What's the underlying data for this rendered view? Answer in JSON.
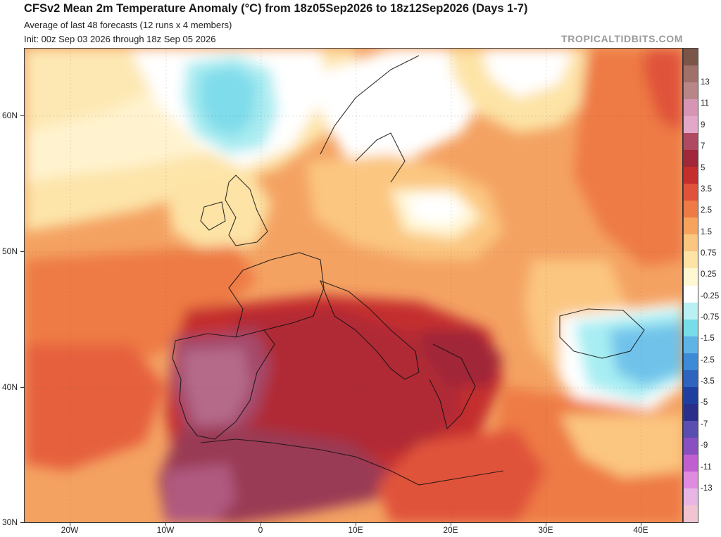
{
  "header": {
    "title": "CFSv2 Mean 2m Temperature Anomaly (°C) from 18z05Sep2026 to 18z12Sep2026 (Days 1-7)",
    "subtitle_1": "Average of last 48 forecasts (12 runs x 4 members)",
    "subtitle_2": "Init: 00z Sep 03 2026 through 18z Sep 05 2026",
    "brand": "TROPICALTIDBITS.COM"
  },
  "map": {
    "lat_labels": [
      "60N",
      "50N",
      "40N",
      "30N"
    ],
    "lon_labels": [
      "20W",
      "10W",
      "0",
      "10E",
      "20E",
      "30E",
      "40E"
    ]
  },
  "colorbar": {
    "labels": [
      "13",
      "11",
      "9",
      "7",
      "5",
      "3.5",
      "2.5",
      "1.5",
      "0.75",
      "0.25",
      "-0.25",
      "-0.75",
      "-1.5",
      "-2.5",
      "-3.5",
      "-5",
      "-7",
      "-9",
      "-11",
      "-13"
    ],
    "colors": [
      "#7a5548",
      "#a0706a",
      "#b98687",
      "#d696b3",
      "#e3a8c8",
      "#b04a62",
      "#a02838",
      "#c42e2e",
      "#e0533a",
      "#ee7a45",
      "#f6a35e",
      "#fbc680",
      "#fde3a6",
      "#fff6d2",
      "#ffffff",
      "#b8f0f4",
      "#78dde8",
      "#5fb4e6",
      "#3d8ad6",
      "#2f63c0",
      "#1f3fa0",
      "#2a2f8a",
      "#5a4fb0",
      "#8a4fc0",
      "#c060d0",
      "#e08ae0",
      "#e8b6e4",
      "#f0c4d0"
    ]
  }
}
